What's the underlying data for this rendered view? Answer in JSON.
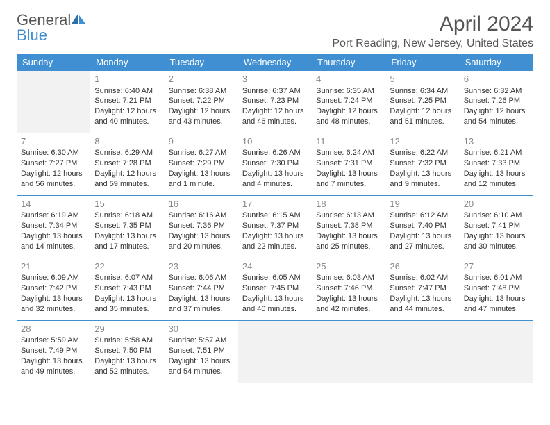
{
  "logo": {
    "text1": "General",
    "text2": "Blue"
  },
  "title": {
    "month": "April 2024",
    "location": "Port Reading, New Jersey, United States"
  },
  "day_headers": [
    "Sunday",
    "Monday",
    "Tuesday",
    "Wednesday",
    "Thursday",
    "Friday",
    "Saturday"
  ],
  "colors": {
    "accent": "#3f8fd2",
    "text": "#333333",
    "muted": "#888888",
    "blank": "#f2f2f2",
    "bg": "#ffffff"
  },
  "month": {
    "year": 2024,
    "month": 4,
    "first_weekday": 1,
    "ndays": 30
  },
  "days": {
    "1": {
      "sunrise": "6:40 AM",
      "sunset": "7:21 PM",
      "daylight": "12 hours and 40 minutes."
    },
    "2": {
      "sunrise": "6:38 AM",
      "sunset": "7:22 PM",
      "daylight": "12 hours and 43 minutes."
    },
    "3": {
      "sunrise": "6:37 AM",
      "sunset": "7:23 PM",
      "daylight": "12 hours and 46 minutes."
    },
    "4": {
      "sunrise": "6:35 AM",
      "sunset": "7:24 PM",
      "daylight": "12 hours and 48 minutes."
    },
    "5": {
      "sunrise": "6:34 AM",
      "sunset": "7:25 PM",
      "daylight": "12 hours and 51 minutes."
    },
    "6": {
      "sunrise": "6:32 AM",
      "sunset": "7:26 PM",
      "daylight": "12 hours and 54 minutes."
    },
    "7": {
      "sunrise": "6:30 AM",
      "sunset": "7:27 PM",
      "daylight": "12 hours and 56 minutes."
    },
    "8": {
      "sunrise": "6:29 AM",
      "sunset": "7:28 PM",
      "daylight": "12 hours and 59 minutes."
    },
    "9": {
      "sunrise": "6:27 AM",
      "sunset": "7:29 PM",
      "daylight": "13 hours and 1 minute."
    },
    "10": {
      "sunrise": "6:26 AM",
      "sunset": "7:30 PM",
      "daylight": "13 hours and 4 minutes."
    },
    "11": {
      "sunrise": "6:24 AM",
      "sunset": "7:31 PM",
      "daylight": "13 hours and 7 minutes."
    },
    "12": {
      "sunrise": "6:22 AM",
      "sunset": "7:32 PM",
      "daylight": "13 hours and 9 minutes."
    },
    "13": {
      "sunrise": "6:21 AM",
      "sunset": "7:33 PM",
      "daylight": "13 hours and 12 minutes."
    },
    "14": {
      "sunrise": "6:19 AM",
      "sunset": "7:34 PM",
      "daylight": "13 hours and 14 minutes."
    },
    "15": {
      "sunrise": "6:18 AM",
      "sunset": "7:35 PM",
      "daylight": "13 hours and 17 minutes."
    },
    "16": {
      "sunrise": "6:16 AM",
      "sunset": "7:36 PM",
      "daylight": "13 hours and 20 minutes."
    },
    "17": {
      "sunrise": "6:15 AM",
      "sunset": "7:37 PM",
      "daylight": "13 hours and 22 minutes."
    },
    "18": {
      "sunrise": "6:13 AM",
      "sunset": "7:38 PM",
      "daylight": "13 hours and 25 minutes."
    },
    "19": {
      "sunrise": "6:12 AM",
      "sunset": "7:40 PM",
      "daylight": "13 hours and 27 minutes."
    },
    "20": {
      "sunrise": "6:10 AM",
      "sunset": "7:41 PM",
      "daylight": "13 hours and 30 minutes."
    },
    "21": {
      "sunrise": "6:09 AM",
      "sunset": "7:42 PM",
      "daylight": "13 hours and 32 minutes."
    },
    "22": {
      "sunrise": "6:07 AM",
      "sunset": "7:43 PM",
      "daylight": "13 hours and 35 minutes."
    },
    "23": {
      "sunrise": "6:06 AM",
      "sunset": "7:44 PM",
      "daylight": "13 hours and 37 minutes."
    },
    "24": {
      "sunrise": "6:05 AM",
      "sunset": "7:45 PM",
      "daylight": "13 hours and 40 minutes."
    },
    "25": {
      "sunrise": "6:03 AM",
      "sunset": "7:46 PM",
      "daylight": "13 hours and 42 minutes."
    },
    "26": {
      "sunrise": "6:02 AM",
      "sunset": "7:47 PM",
      "daylight": "13 hours and 44 minutes."
    },
    "27": {
      "sunrise": "6:01 AM",
      "sunset": "7:48 PM",
      "daylight": "13 hours and 47 minutes."
    },
    "28": {
      "sunrise": "5:59 AM",
      "sunset": "7:49 PM",
      "daylight": "13 hours and 49 minutes."
    },
    "29": {
      "sunrise": "5:58 AM",
      "sunset": "7:50 PM",
      "daylight": "13 hours and 52 minutes."
    },
    "30": {
      "sunrise": "5:57 AM",
      "sunset": "7:51 PM",
      "daylight": "13 hours and 54 minutes."
    }
  },
  "labels": {
    "sunrise": "Sunrise:",
    "sunset": "Sunset:",
    "daylight": "Daylight:"
  }
}
